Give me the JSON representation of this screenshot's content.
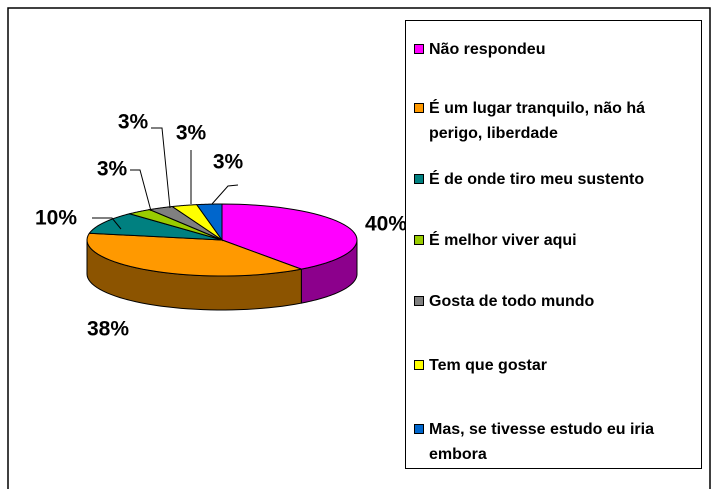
{
  "chart_data": {
    "type": "pie",
    "categories": [
      "Não respondeu",
      "É um lugar tranquilo, não há perigo, liberdade",
      "É de onde tiro meu sustento",
      "É melhor viver aqui",
      "Gosta de todo mundo",
      "Tem que gostar",
      "Mas, se tivesse estudo eu iria embora"
    ],
    "values": [
      40,
      38,
      10,
      3,
      3,
      3,
      3
    ],
    "value_labels": [
      "40%",
      "38%",
      "10%",
      "3%",
      "3%",
      "3%",
      "3%"
    ],
    "colors": [
      "#ff00ff",
      "#ff9900",
      "#008080",
      "#99cc00",
      "#808080",
      "#ffff00",
      "#0066cc"
    ],
    "legend": "right"
  }
}
